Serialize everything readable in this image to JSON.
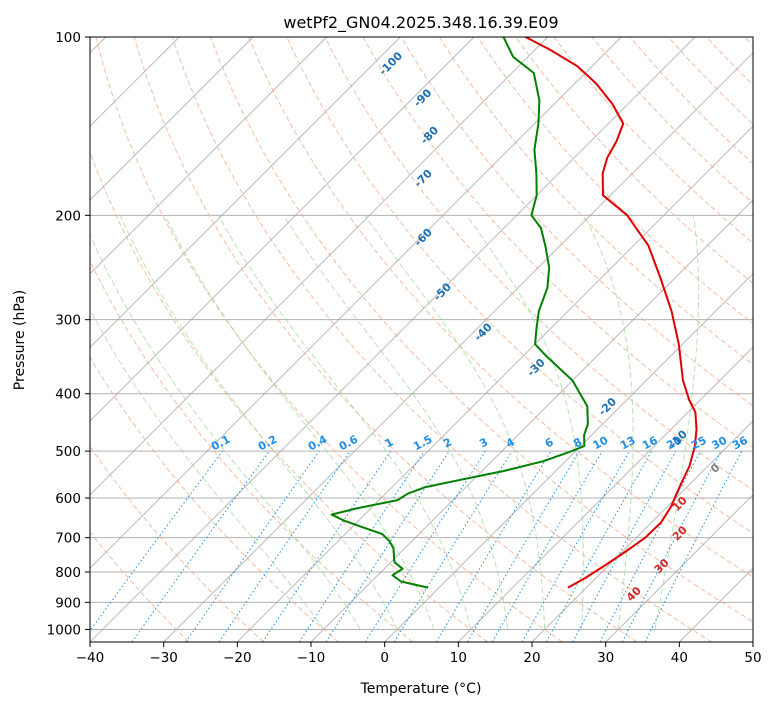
{
  "chart_data": {
    "type": "line",
    "title": "wetPf2_GN04.2025.348.16.39.E09",
    "xlabel": "Temperature (°C)",
    "ylabel": "Pressure (hPa)",
    "xlim": [
      -40,
      50
    ],
    "ylim": [
      1050,
      100
    ],
    "y_scale": "log",
    "grid": true,
    "x_ticks": [
      -40,
      -30,
      -20,
      -10,
      0,
      10,
      20,
      30,
      40,
      50
    ],
    "y_ticks": [
      100,
      200,
      300,
      400,
      500,
      600,
      700,
      800,
      900,
      1000
    ],
    "series": [
      {
        "role": "temperature",
        "color": "#e00000",
        "points": [
          [
            17.5,
            850
          ],
          [
            18.5,
            820
          ],
          [
            19.5,
            780
          ],
          [
            20.4,
            740
          ],
          [
            21.2,
            700
          ],
          [
            21.3,
            660
          ],
          [
            20.5,
            620
          ],
          [
            19.5,
            590
          ],
          [
            18.5,
            560
          ],
          [
            17.5,
            530
          ],
          [
            15.5,
            490
          ],
          [
            13.5,
            460
          ],
          [
            11.0,
            430
          ],
          [
            8.5,
            410
          ],
          [
            5.0,
            380
          ],
          [
            -0.5,
            330
          ],
          [
            -6.0,
            290
          ],
          [
            -12.0,
            255
          ],
          [
            -18.0,
            225
          ],
          [
            -25.0,
            200
          ],
          [
            -31.0,
            185
          ],
          [
            -34.0,
            170
          ],
          [
            -35.5,
            160
          ],
          [
            -36.5,
            150
          ],
          [
            -38.0,
            140
          ],
          [
            -42.0,
            130
          ],
          [
            -47.0,
            120
          ],
          [
            -52.0,
            112
          ],
          [
            -58.0,
            105
          ],
          [
            -63.0,
            100
          ]
        ]
      },
      {
        "role": "dewpoint",
        "color": "#008000",
        "points": [
          [
            -1.5,
            850
          ],
          [
            -6.0,
            830
          ],
          [
            -8.0,
            810
          ],
          [
            -7.5,
            790
          ],
          [
            -9.5,
            770
          ],
          [
            -10.5,
            750
          ],
          [
            -11.5,
            730
          ],
          [
            -13.0,
            710
          ],
          [
            -15.0,
            690
          ],
          [
            -19.0,
            670
          ],
          [
            -22.0,
            655
          ],
          [
            -24.5,
            640
          ],
          [
            -22.0,
            625
          ],
          [
            -17.5,
            605
          ],
          [
            -17.0,
            590
          ],
          [
            -15.5,
            575
          ],
          [
            -12.0,
            560
          ],
          [
            -7.0,
            540
          ],
          [
            -3.0,
            520
          ],
          [
            -0.5,
            500
          ],
          [
            0.5,
            490
          ],
          [
            -1.0,
            470
          ],
          [
            -2.0,
            450
          ],
          [
            -4.5,
            420
          ],
          [
            -10.0,
            380
          ],
          [
            -17.0,
            345
          ],
          [
            -20.0,
            330
          ],
          [
            -22.0,
            310
          ],
          [
            -24.0,
            290
          ],
          [
            -26.0,
            265
          ],
          [
            -28.5,
            245
          ],
          [
            -32.0,
            225
          ],
          [
            -35.0,
            210
          ],
          [
            -38.0,
            200
          ],
          [
            -40.0,
            185
          ],
          [
            -43.0,
            170
          ],
          [
            -46.5,
            155
          ],
          [
            -49.5,
            140
          ],
          [
            -52.5,
            128
          ],
          [
            -57.0,
            115
          ],
          [
            -62.0,
            108
          ],
          [
            -66.0,
            100
          ]
        ]
      }
    ],
    "dry_adiabat_labels": [
      "-100",
      "-90",
      "-80",
      "-70",
      "-60",
      "-50",
      "-40",
      "-30",
      "-20",
      "-10",
      "0",
      "10",
      "20",
      "30",
      "40"
    ],
    "mixing_ratio_labels": [
      "0.1",
      "0.2",
      "0.4",
      "0.6",
      "1",
      "1.5",
      "2",
      "3",
      "4",
      "6",
      "8",
      "10",
      "13",
      "16",
      "20",
      "25",
      "30",
      "36"
    ],
    "mixing_ratio_values": [
      0.1,
      0.2,
      0.4,
      0.6,
      1,
      1.5,
      2,
      3,
      4,
      6,
      8,
      10,
      13,
      16,
      20,
      25,
      30,
      36
    ],
    "dry_adiabat_values": [
      -100,
      -90,
      -80,
      -70,
      -60,
      -50,
      -40,
      -30,
      -20,
      -10,
      0,
      10,
      20,
      30,
      40
    ],
    "colors": {
      "dry_adiabat": "#f4a582",
      "moist_adiabat": "#a1d99b",
      "mixing_ratio": "#1f8ee6",
      "isotherm": "#9e9e9e",
      "label_blue": "#1f6fb4",
      "label_red": "#d62728",
      "label_gray": "#7f7f7f"
    }
  }
}
